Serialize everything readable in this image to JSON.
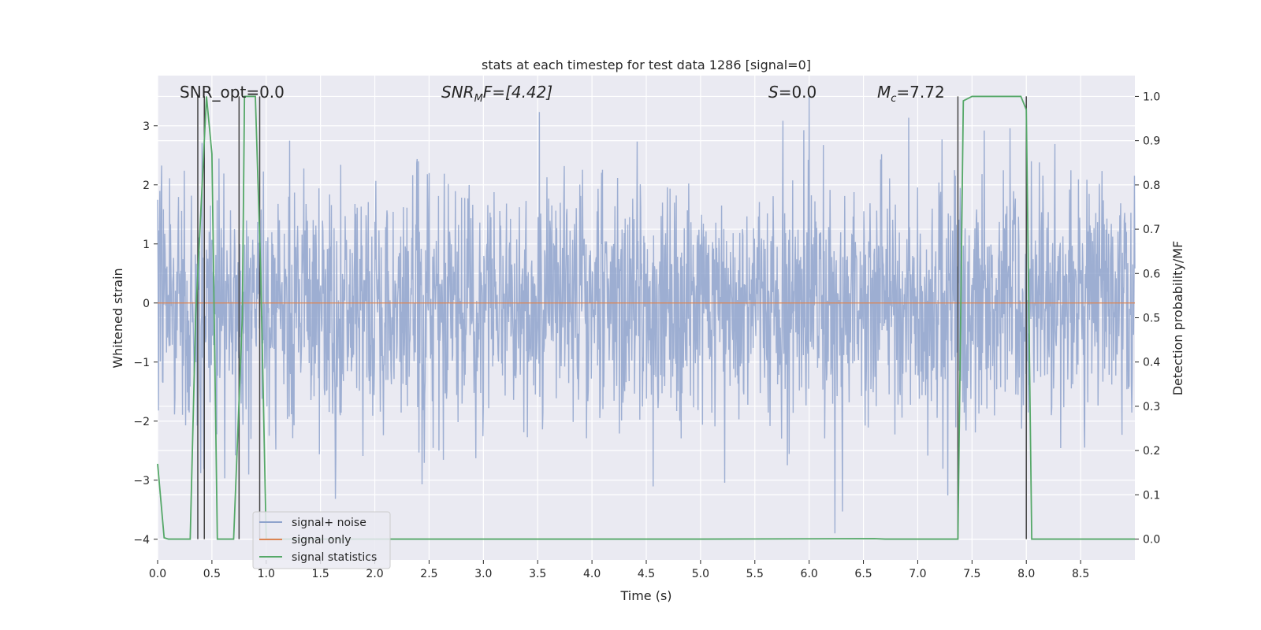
{
  "chart_data": {
    "type": "line",
    "title": "stats at each timestep for test data 1286 [signal=0]",
    "xlabel": "Time (s)",
    "ylabel": "Whitened strain",
    "ylabel_right": "Detection probability/MF",
    "xlim": [
      0.0,
      9.0
    ],
    "ylim": [
      -4.35,
      3.85
    ],
    "ylim_right": [
      -0.047,
      1.047
    ],
    "x_ticks": [
      "0.0",
      "0.5",
      "1.0",
      "1.5",
      "2.0",
      "2.5",
      "3.0",
      "3.5",
      "4.0",
      "4.5",
      "5.0",
      "5.5",
      "6.0",
      "6.5",
      "7.0",
      "7.5",
      "8.0",
      "8.5"
    ],
    "y_ticks": [
      "3",
      "2",
      "1",
      "0",
      "−1",
      "−2",
      "−3",
      "−4"
    ],
    "y_right_ticks": [
      "1.0",
      "0.9",
      "0.8",
      "0.7",
      "0.6",
      "0.5",
      "0.4",
      "0.3",
      "0.2",
      "0.1",
      "0.0"
    ],
    "annotations": {
      "snr_opt": "SNR_opt=0.0",
      "snr_mf_main": "SNR",
      "snr_mf_sub": "M",
      "snr_mf_rest": "F=[4.42]",
      "s_main": "S",
      "s_rest": "=0.0",
      "mc_main": "M",
      "mc_sub": "c",
      "mc_rest": "=7.72"
    },
    "grid": true,
    "legend_position": "lower-left",
    "series": [
      {
        "name": "signal+ noise",
        "axis": "left",
        "color": "#8fa3cc",
        "description_range": [
          -3.9,
          3.5
        ]
      },
      {
        "name": "signal only",
        "axis": "left",
        "color": "#dd8452",
        "x": [
          0.0,
          9.0
        ],
        "y": [
          0.0,
          0.0
        ]
      },
      {
        "name": "signal statistics",
        "axis": "right",
        "color": "#55a868",
        "x": [
          0.0,
          0.06,
          0.1,
          0.3,
          0.35,
          0.45,
          0.5,
          0.55,
          0.7,
          0.78,
          0.8,
          0.9,
          0.95,
          1.0,
          1.05,
          1.2,
          5.0,
          6.6,
          6.7,
          7.37,
          7.42,
          7.5,
          7.95,
          8.0,
          8.05,
          8.1,
          9.0
        ],
        "y": [
          0.17,
          0.003,
          0.0,
          0.0,
          0.5,
          1.0,
          0.87,
          0.0,
          0.0,
          0.5,
          1.0,
          1.0,
          0.6,
          0.0,
          0.0,
          0.0,
          0.0,
          0.001,
          0.0,
          0.0,
          0.99,
          1.0,
          1.0,
          0.97,
          0.0,
          0.0,
          0.0
        ]
      }
    ],
    "vertical_lines": [
      0.37,
      0.43,
      0.75,
      0.94,
      7.37,
      8.0
    ],
    "colors": {
      "background": "#eaeaf2",
      "grid": "#ffffff",
      "vline": "#444444"
    }
  }
}
